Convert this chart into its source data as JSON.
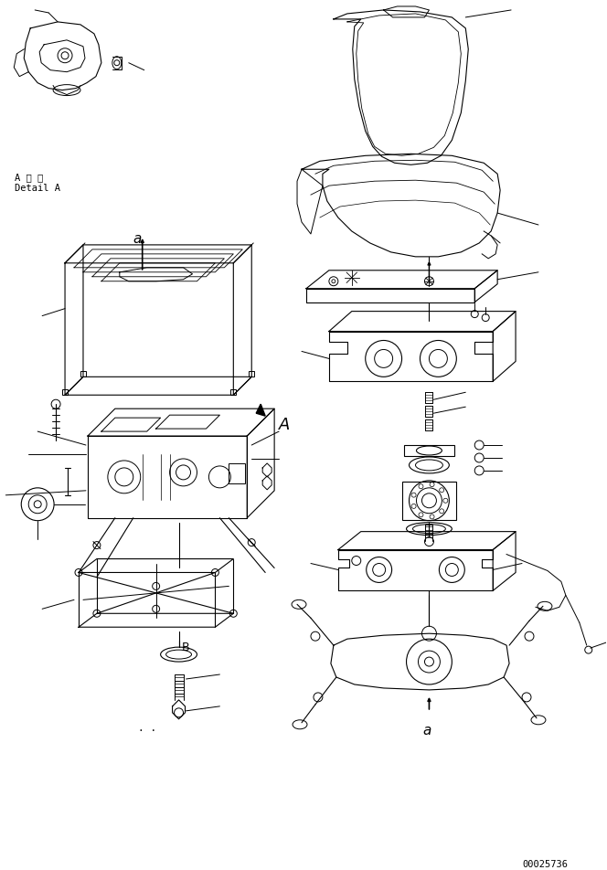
{
  "background_color": "#ffffff",
  "line_color": "#000000",
  "text_color": "#000000",
  "part_number": "00025736",
  "detail_label_jp": "A 詳 細",
  "detail_label_en": "Detail A",
  "fig_width": 6.64,
  "fig_height": 9.53,
  "dpi": 100
}
